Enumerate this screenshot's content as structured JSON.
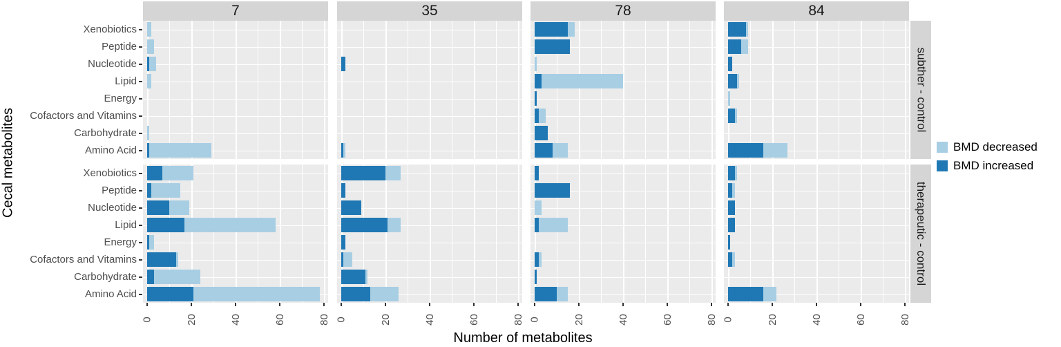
{
  "figure": {
    "y_axis_title": "Cecal metabolites",
    "x_axis_title": "Number of metabolites",
    "colors": {
      "increased": "#1f78b4",
      "decreased": "#a8cee4",
      "panel_bg": "#ebebeb",
      "strip_bg": "#d5d5d5",
      "grid": "#ffffff"
    },
    "legend": [
      {
        "label": "BMD decreased",
        "key": "decreased"
      },
      {
        "label": "BMD increased",
        "key": "increased"
      }
    ]
  },
  "chart_data": {
    "type": "bar",
    "orientation": "horizontal",
    "stacked": true,
    "title": "",
    "xlabel": "Number of metabolites",
    "ylabel": "Cecal metabolites",
    "grid": true,
    "legend_position": "right",
    "x_ticks": [
      0,
      20,
      40,
      60,
      80
    ],
    "xlim": [
      0,
      82
    ],
    "categories": [
      "Xenobiotics",
      "Peptide",
      "Nucleotide",
      "Lipid",
      "Energy",
      "Cofactors and Vitamins",
      "Carbohydrate",
      "Amino Acid"
    ],
    "facet_columns": [
      "7",
      "35",
      "78",
      "84"
    ],
    "facet_rows": [
      "subther - control",
      "therapeutic - control"
    ],
    "series_names": [
      "BMD increased",
      "BMD decreased"
    ],
    "facets": [
      {
        "row": "subther - control",
        "col": "7",
        "increased": [
          0,
          0,
          1,
          0,
          0,
          0,
          0,
          1
        ],
        "decreased": [
          2,
          3,
          3,
          2,
          0,
          0,
          1,
          28
        ]
      },
      {
        "row": "subther - control",
        "col": "35",
        "increased": [
          0,
          0,
          2,
          0,
          0,
          0,
          0,
          1
        ],
        "decreased": [
          0,
          0,
          0,
          0,
          0,
          0,
          0,
          1
        ]
      },
      {
        "row": "subther - control",
        "col": "78",
        "increased": [
          15,
          16,
          0,
          3,
          1,
          2,
          6,
          8
        ],
        "decreased": [
          3,
          0,
          1,
          37,
          0,
          3,
          0,
          7
        ]
      },
      {
        "row": "subther - control",
        "col": "84",
        "increased": [
          8,
          6,
          2,
          4,
          0,
          3,
          0,
          16
        ],
        "decreased": [
          1,
          3,
          0,
          1,
          1,
          1,
          0,
          11
        ]
      },
      {
        "row": "therapeutic - control",
        "col": "7",
        "increased": [
          7,
          2,
          10,
          17,
          1,
          13,
          3,
          21
        ],
        "decreased": [
          14,
          13,
          9,
          41,
          2,
          1,
          21,
          57
        ]
      },
      {
        "row": "therapeutic - control",
        "col": "35",
        "increased": [
          20,
          2,
          9,
          21,
          2,
          1,
          11,
          13
        ],
        "decreased": [
          7,
          0,
          0,
          6,
          0,
          4,
          1,
          13
        ]
      },
      {
        "row": "therapeutic - control",
        "col": "78",
        "increased": [
          2,
          16,
          0,
          2,
          0,
          2,
          1,
          10
        ],
        "decreased": [
          0,
          0,
          3,
          13,
          0,
          1,
          0,
          5
        ]
      },
      {
        "row": "therapeutic - control",
        "col": "84",
        "increased": [
          3,
          2,
          3,
          3,
          1,
          2,
          0,
          16
        ],
        "decreased": [
          1,
          1,
          0,
          0,
          0,
          1,
          0,
          6
        ]
      }
    ]
  }
}
